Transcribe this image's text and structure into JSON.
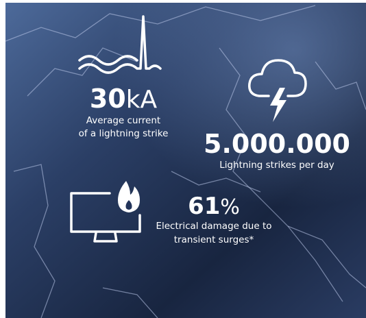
{
  "stats": [
    {
      "value": "30",
      "unit": "kA",
      "caption": [
        "Average current",
        "of a lightning strike"
      ]
    },
    {
      "value": "5.000.000",
      "caption": [
        "Lightning strikes per day"
      ]
    },
    {
      "value": "61",
      "unit": "%",
      "caption": [
        "Electrical damage due to",
        "transient surges*"
      ]
    }
  ]
}
